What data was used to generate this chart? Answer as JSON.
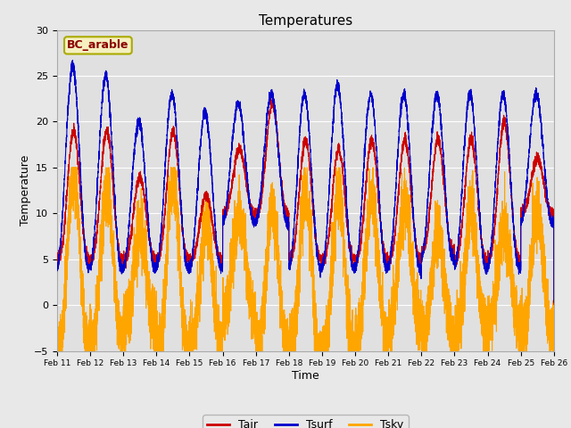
{
  "title": "Temperatures",
  "xlabel": "Time",
  "ylabel": "Temperature",
  "station_label": "BC_arable",
  "ylim": [
    -5,
    30
  ],
  "fig_bg_color": "#e8e8e8",
  "plot_bg_color": "#e0e0e0",
  "tair_color": "#cc0000",
  "tsurf_color": "#0000cc",
  "tsky_color": "#ffa500",
  "legend_entries": [
    "Tair",
    "Tsurf",
    "Tsky"
  ],
  "xtick_labels": [
    "Feb 11",
    "Feb 12",
    "Feb 13",
    "Feb 14",
    "Feb 15",
    "Feb 16",
    "Feb 17",
    "Feb 18",
    "Feb 19",
    "Feb 20",
    "Feb 21",
    "Feb 22",
    "Feb 23",
    "Feb 24",
    "Feb 25",
    "Feb 26"
  ],
  "n_points": 7200,
  "n_days": 15
}
